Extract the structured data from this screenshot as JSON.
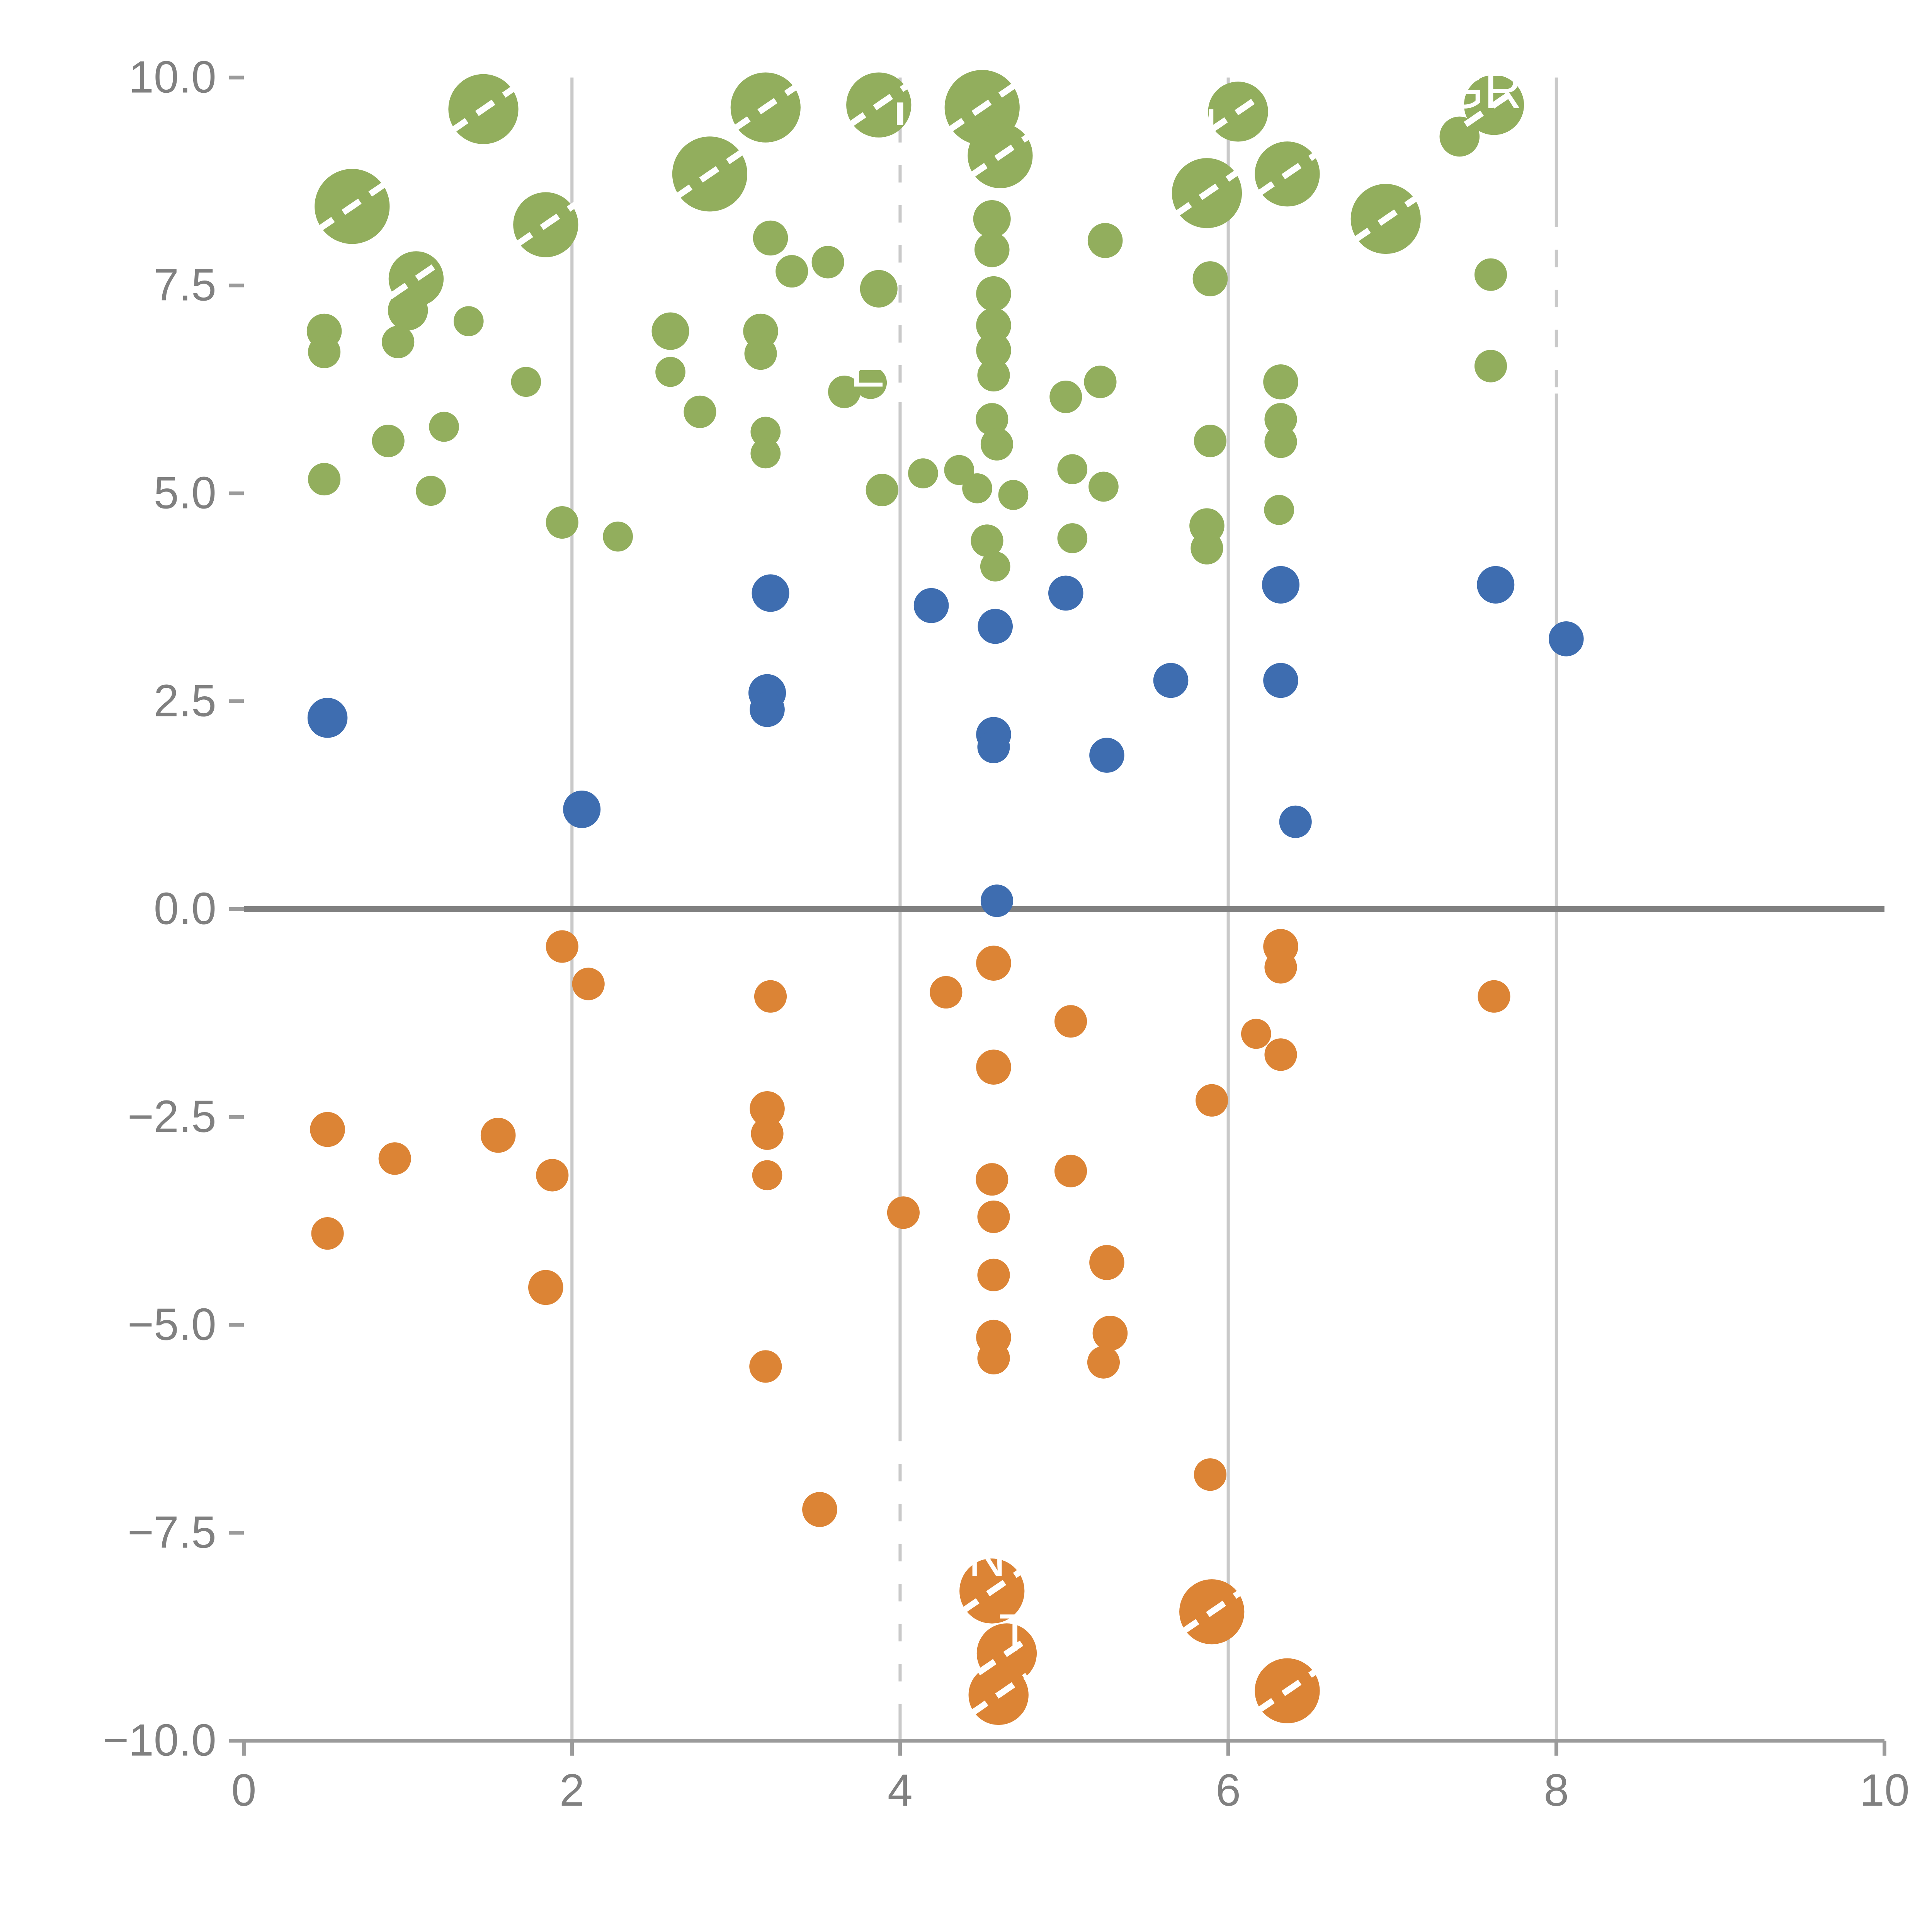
{
  "chart_data": {
    "type": "scatter",
    "title": "",
    "xlabel": "",
    "ylabel": "",
    "xlim": [
      0,
      10
    ],
    "ylim": [
      -10,
      10
    ],
    "grid": "vertical-only",
    "legend": "none",
    "x_ticks": [
      {
        "value": 0,
        "label": "0"
      },
      {
        "value": 2,
        "label": "2"
      },
      {
        "value": 4,
        "label": "4"
      },
      {
        "value": 6,
        "label": "6"
      },
      {
        "value": 8,
        "label": "8"
      },
      {
        "value": 10,
        "label": "10"
      }
    ],
    "y_ticks": [
      {
        "value": 10,
        "label": "10.0"
      },
      {
        "value": 7.5,
        "label": "7.5"
      },
      {
        "value": 5,
        "label": "5.0"
      },
      {
        "value": 2.5,
        "label": "2.5"
      },
      {
        "value": 0,
        "label": "0.0"
      },
      {
        "value": -2.5,
        "label": "−2.5"
      },
      {
        "value": -5,
        "label": "−5.0"
      },
      {
        "value": -7.5,
        "label": "−7.5"
      },
      {
        "value": -10,
        "label": "−10.0"
      }
    ],
    "x_gridlines": [
      2,
      4,
      6,
      8
    ],
    "zero_line_y": 0,
    "series": [
      {
        "name": "green",
        "color": "#92AE5D",
        "points": [
          [
            1.46,
            9.62,
            28,
            1
          ],
          [
            0.66,
            8.45,
            30,
            1
          ],
          [
            1.84,
            8.23,
            26,
            1
          ],
          [
            1.05,
            7.58,
            22,
            1
          ],
          [
            1.0,
            7.2,
            16,
            0
          ],
          [
            0.49,
            6.95,
            14,
            0
          ],
          [
            0.49,
            6.7,
            13,
            0
          ],
          [
            0.94,
            6.82,
            13,
            0
          ],
          [
            1.37,
            7.07,
            12,
            0
          ],
          [
            0.88,
            5.63,
            13,
            0
          ],
          [
            1.22,
            5.8,
            12,
            0
          ],
          [
            1.14,
            5.03,
            12,
            0
          ],
          [
            0.49,
            5.17,
            13,
            0
          ],
          [
            1.72,
            6.34,
            12,
            0
          ],
          [
            1.94,
            4.65,
            13,
            0
          ],
          [
            2.28,
            4.48,
            12,
            0
          ],
          [
            2.84,
            8.84,
            30,
            1
          ],
          [
            3.18,
            9.64,
            28,
            1
          ],
          [
            3.87,
            9.67,
            26,
            1
          ],
          [
            3.21,
            8.07,
            14,
            0
          ],
          [
            3.34,
            7.67,
            13,
            0
          ],
          [
            3.56,
            7.78,
            13,
            0
          ],
          [
            2.6,
            6.95,
            15,
            0
          ],
          [
            2.6,
            6.46,
            12,
            0
          ],
          [
            2.78,
            5.98,
            13,
            0
          ],
          [
            3.15,
            6.95,
            14,
            0
          ],
          [
            3.15,
            6.68,
            13,
            0
          ],
          [
            3.18,
            5.74,
            12,
            0
          ],
          [
            3.18,
            5.48,
            12,
            0
          ],
          [
            3.66,
            6.22,
            13,
            0
          ],
          [
            3.82,
            6.33,
            13,
            0
          ],
          [
            3.87,
            7.46,
            15,
            0
          ],
          [
            3.89,
            5.04,
            13,
            0
          ],
          [
            4.14,
            5.24,
            12,
            0
          ],
          [
            4.36,
            5.28,
            12,
            0
          ],
          [
            4.5,
            9.64,
            30,
            1
          ],
          [
            4.61,
            9.06,
            26,
            1
          ],
          [
            4.56,
            8.3,
            15,
            0
          ],
          [
            4.56,
            7.93,
            14,
            0
          ],
          [
            4.57,
            7.4,
            14,
            0
          ],
          [
            4.57,
            7.02,
            14,
            0
          ],
          [
            4.57,
            6.72,
            14,
            0
          ],
          [
            4.57,
            6.42,
            13,
            0
          ],
          [
            4.56,
            5.89,
            13,
            0
          ],
          [
            4.59,
            5.59,
            13,
            0
          ],
          [
            4.47,
            5.06,
            12,
            0
          ],
          [
            4.69,
            4.98,
            12,
            0
          ],
          [
            4.53,
            4.43,
            13,
            0
          ],
          [
            4.58,
            4.12,
            12,
            0
          ],
          [
            5.01,
            6.16,
            13,
            0
          ],
          [
            5.05,
            5.29,
            12,
            0
          ],
          [
            5.22,
            6.34,
            13,
            0
          ],
          [
            5.24,
            5.08,
            12,
            0
          ],
          [
            5.05,
            4.46,
            12,
            0
          ],
          [
            5.25,
            8.04,
            14,
            0
          ],
          [
            5.87,
            8.61,
            28,
            1
          ],
          [
            6.36,
            8.84,
            26,
            1
          ],
          [
            6.06,
            9.59,
            24,
            1
          ],
          [
            5.89,
            7.58,
            14,
            0
          ],
          [
            5.89,
            5.63,
            13,
            0
          ],
          [
            5.87,
            4.61,
            14,
            0
          ],
          [
            5.87,
            4.34,
            13,
            0
          ],
          [
            6.32,
            6.34,
            14,
            0
          ],
          [
            6.32,
            5.89,
            13,
            0
          ],
          [
            6.32,
            5.62,
            13,
            0
          ],
          [
            6.31,
            4.8,
            12,
            0
          ],
          [
            6.96,
            8.3,
            28,
            1
          ],
          [
            7.62,
            9.67,
            24,
            1
          ],
          [
            7.41,
            9.29,
            16,
            0
          ],
          [
            7.6,
            7.63,
            13,
            0
          ],
          [
            7.6,
            6.53,
            13,
            0
          ]
        ]
      },
      {
        "name": "blue",
        "color": "#3E6DB0",
        "points": [
          [
            0.51,
            2.3,
            16,
            0
          ],
          [
            2.06,
            1.2,
            15,
            0
          ],
          [
            3.21,
            3.8,
            15,
            0
          ],
          [
            3.19,
            2.6,
            15,
            0
          ],
          [
            3.19,
            2.4,
            14,
            0
          ],
          [
            4.19,
            3.65,
            14,
            0
          ],
          [
            4.58,
            3.4,
            14,
            0
          ],
          [
            4.57,
            2.1,
            14,
            0
          ],
          [
            4.57,
            1.95,
            13,
            0
          ],
          [
            4.59,
            0.1,
            13,
            0
          ],
          [
            5.01,
            3.8,
            14,
            0
          ],
          [
            5.26,
            1.85,
            14,
            0
          ],
          [
            5.65,
            2.75,
            14,
            0
          ],
          [
            6.32,
            3.9,
            15,
            0
          ],
          [
            6.32,
            2.75,
            14,
            0
          ],
          [
            6.41,
            1.05,
            13,
            0
          ],
          [
            7.63,
            3.9,
            15,
            0
          ],
          [
            8.06,
            3.25,
            14,
            0
          ]
        ]
      },
      {
        "name": "orange",
        "color": "#DC8435",
        "points": [
          [
            0.51,
            -2.65,
            14,
            0
          ],
          [
            0.51,
            -3.9,
            13,
            0
          ],
          [
            0.92,
            -3.0,
            13,
            0
          ],
          [
            1.55,
            -2.72,
            14,
            0
          ],
          [
            1.88,
            -3.2,
            13,
            0
          ],
          [
            1.84,
            -4.55,
            14,
            0
          ],
          [
            1.94,
            -0.45,
            13,
            0
          ],
          [
            2.1,
            -0.9,
            13,
            0
          ],
          [
            3.21,
            -1.05,
            13,
            0
          ],
          [
            3.19,
            -2.4,
            14,
            0
          ],
          [
            3.19,
            -2.7,
            13,
            0
          ],
          [
            3.19,
            -3.2,
            12,
            0
          ],
          [
            3.18,
            -5.5,
            13,
            0
          ],
          [
            3.51,
            -7.22,
            14,
            0
          ],
          [
            4.02,
            -3.65,
            13,
            0
          ],
          [
            4.28,
            -1.0,
            13,
            0
          ],
          [
            4.57,
            -0.65,
            14,
            0
          ],
          [
            4.57,
            -1.9,
            14,
            0
          ],
          [
            4.56,
            -3.25,
            13,
            0
          ],
          [
            4.57,
            -3.7,
            13,
            0
          ],
          [
            4.57,
            -4.4,
            13,
            0
          ],
          [
            4.57,
            -5.15,
            14,
            0
          ],
          [
            4.57,
            -5.4,
            13,
            0
          ],
          [
            5.04,
            -1.35,
            13,
            0
          ],
          [
            5.04,
            -3.15,
            13,
            0
          ],
          [
            5.26,
            -4.25,
            14,
            0
          ],
          [
            5.28,
            -5.1,
            14,
            0
          ],
          [
            5.24,
            -5.45,
            13,
            0
          ],
          [
            4.56,
            -8.2,
            26,
            1
          ],
          [
            4.65,
            -8.95,
            24,
            1
          ],
          [
            4.6,
            -9.45,
            24,
            1
          ],
          [
            5.9,
            -8.45,
            26,
            1
          ],
          [
            6.36,
            -9.4,
            26,
            1
          ],
          [
            5.89,
            -6.8,
            13,
            0
          ],
          [
            5.9,
            -2.3,
            13,
            0
          ],
          [
            6.17,
            -1.5,
            12,
            0
          ],
          [
            6.32,
            -1.75,
            13,
            0
          ],
          [
            6.32,
            -0.45,
            14,
            0
          ],
          [
            6.32,
            -0.7,
            13,
            0
          ],
          [
            7.62,
            -1.05,
            13,
            0
          ]
        ]
      }
    ],
    "annotations": [
      {
        "text": "GR",
        "x": 7.55,
        "y": 9.8
      },
      {
        "text": "N",
        "x": 5.82,
        "y": 9.35
      },
      {
        "text": "E",
        "x": 3.8,
        "y": 6.45
      },
      {
        "text": "N",
        "x": 4.53,
        "y": -7.85
      },
      {
        "text": "T",
        "x": 4.7,
        "y": -8.75
      }
    ],
    "dashed_leader_lines": [
      {
        "x": 4.0,
        "y1": 9.7,
        "y2": 6.1
      },
      {
        "x": 8.0,
        "y1": 8.2,
        "y2": 6.2
      },
      {
        "x": 4.0,
        "y1": -6.4,
        "y2": -9.7
      }
    ]
  },
  "colors": {
    "background": "#FFFFFF",
    "gridline": "#C9C9C9",
    "spine": "#9B9B9B",
    "zero_line": "#808080",
    "tick_text": "#808080",
    "annotation_text": "#FFFFFF",
    "leader_line": "#FFFFFF"
  }
}
